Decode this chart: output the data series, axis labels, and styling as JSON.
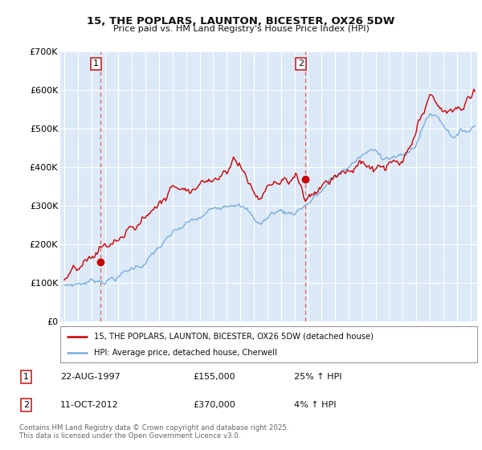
{
  "title_line1": "15, THE POPLARS, LAUNTON, BICESTER, OX26 5DW",
  "title_line2": "Price paid vs. HM Land Registry's House Price Index (HPI)",
  "legend_label1": "15, THE POPLARS, LAUNTON, BICESTER, OX26 5DW (detached house)",
  "legend_label2": "HPI: Average price, detached house, Cherwell",
  "footer": "Contains HM Land Registry data © Crown copyright and database right 2025.\nThis data is licensed under the Open Government Licence v3.0.",
  "transaction1_date": "22-AUG-1997",
  "transaction1_price": "£155,000",
  "transaction1_hpi": "25% ↑ HPI",
  "transaction2_date": "11-OCT-2012",
  "transaction2_price": "£370,000",
  "transaction2_hpi": "4% ↑ HPI",
  "transaction1_x": 1997.64,
  "transaction1_y": 155000,
  "transaction2_x": 2012.78,
  "transaction2_y": 370000,
  "ylim": [
    0,
    700000
  ],
  "xlim_start": 1994.7,
  "xlim_end": 2025.5,
  "line1_color": "#cc0000",
  "line2_color": "#7aaddc",
  "background_color": "#dce9f7",
  "grid_color": "#ffffff",
  "vline_color": "#e06060",
  "yticks": [
    0,
    100000,
    200000,
    300000,
    400000,
    500000,
    600000,
    700000
  ],
  "ytick_labels": [
    "£0",
    "£100K",
    "£200K",
    "£300K",
    "£400K",
    "£500K",
    "£600K",
    "£700K"
  ],
  "xticks": [
    1995,
    1996,
    1997,
    1998,
    1999,
    2000,
    2001,
    2002,
    2003,
    2004,
    2005,
    2006,
    2007,
    2008,
    2009,
    2010,
    2011,
    2012,
    2013,
    2014,
    2015,
    2016,
    2017,
    2018,
    2019,
    2020,
    2021,
    2022,
    2023,
    2024,
    2025
  ]
}
